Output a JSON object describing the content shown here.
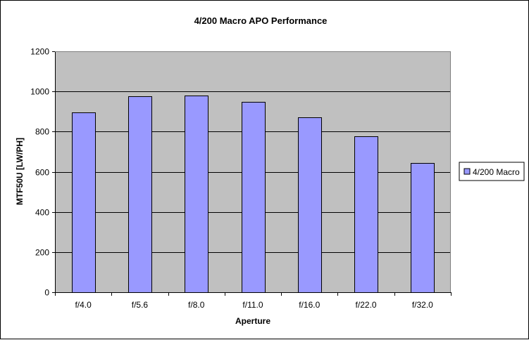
{
  "chart_data": {
    "type": "bar",
    "title": "4/200 Macro APO Performance",
    "xlabel": "Aperture",
    "ylabel": "MTF50U [LW/PH]",
    "categories": [
      "f/4.0",
      "f/5.6",
      "f/8.0",
      "f/11.0",
      "f/16.0",
      "f/22.0",
      "f/32.0"
    ],
    "series": [
      {
        "name": "4/200 Macro",
        "values": [
          895,
          975,
          980,
          948,
          870,
          777,
          645
        ]
      }
    ],
    "ylim": [
      0,
      1200
    ],
    "yticks": [
      0,
      200,
      400,
      600,
      800,
      1000,
      1200
    ],
    "grid": true,
    "legend_position": "right",
    "colors": {
      "plot_background": "#c0c0c0",
      "bar_fill": "#9999ff",
      "bar_stroke": "#000000",
      "gridline": "#000000"
    }
  }
}
